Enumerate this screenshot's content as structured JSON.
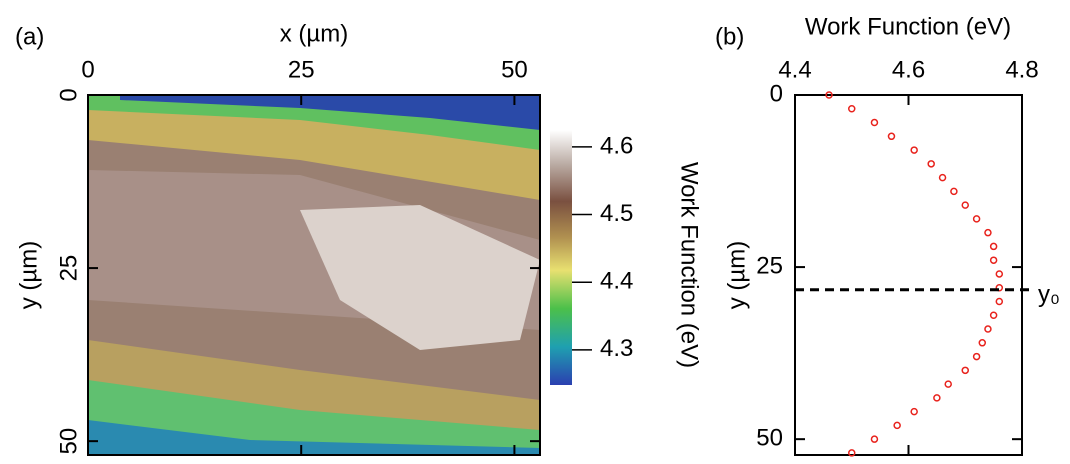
{
  "chart_data": [
    {
      "type": "image",
      "panel_label": "(a)",
      "xlabel": "x (µm)",
      "ylabel": "y (µm)",
      "xlim": [
        0,
        53
      ],
      "ylim": [
        0,
        52
      ],
      "xticks": [
        0,
        25,
        50
      ],
      "yticks": [
        0,
        25,
        50
      ],
      "colorbar": {
        "label": "Work Function (eV)",
        "lim": [
          4.248,
          4.625
        ],
        "ticks": [
          4.3,
          4.4,
          4.5,
          4.6
        ]
      }
    },
    {
      "type": "scatter",
      "panel_label": "(b)",
      "xlabel": "Work Function (eV)",
      "ylabel": "y (µm)",
      "xlim": [
        4.4,
        4.8
      ],
      "ylim": [
        0,
        52.3
      ],
      "xticks": [
        4.4,
        4.6,
        4.8
      ],
      "yticks": [
        0,
        25,
        50
      ],
      "color": "#e8221c",
      "x": [
        4.46,
        4.5,
        4.54,
        4.57,
        4.61,
        4.64,
        4.66,
        4.68,
        4.7,
        4.72,
        4.74,
        4.75,
        4.75,
        4.76,
        4.76,
        4.76,
        4.75,
        4.74,
        4.73,
        4.72,
        4.7,
        4.67,
        4.65,
        4.61,
        4.58,
        4.54,
        4.5
      ],
      "y": [
        0,
        2,
        4,
        6,
        8,
        10,
        12,
        14,
        16,
        18,
        20,
        22,
        24,
        26,
        28,
        30,
        32,
        34,
        36,
        38,
        40,
        42,
        44,
        46,
        48,
        50,
        52
      ],
      "hline": {
        "value": 28.3,
        "label": "y₀"
      }
    }
  ]
}
